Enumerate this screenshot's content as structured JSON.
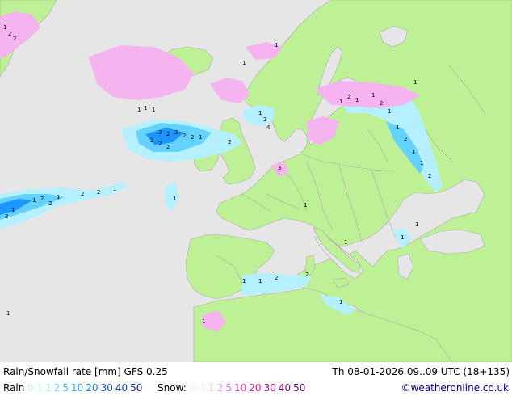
{
  "footer": {
    "title": "Rain/Snowfall rate [mm] GFS 0.25",
    "datetime": "Th 08-01-2026 09..09 UTC (18+135)",
    "rain_label": "Rain",
    "rain_scale": [
      {
        "label": "0.1",
        "color": "#c8f0ff"
      },
      {
        "label": "1",
        "color": "#96e6ff"
      },
      {
        "label": "2",
        "color": "#64d2ff"
      },
      {
        "label": "5",
        "color": "#32b4ff"
      },
      {
        "label": "10",
        "color": "#1e96ff"
      },
      {
        "label": "20",
        "color": "#1478e6"
      },
      {
        "label": "30",
        "color": "#0a5ac8"
      },
      {
        "label": "40",
        "color": "#0a3caa"
      },
      {
        "label": "50",
        "color": "#0a1e8c"
      }
    ],
    "snow_label": "Snow:",
    "snow_scale": [
      {
        "label": "0.1",
        "color": "#ffe6ff"
      },
      {
        "label": "1",
        "color": "#ffbef5"
      },
      {
        "label": "2",
        "color": "#ff96eb"
      },
      {
        "label": "5",
        "color": "#ff64dc"
      },
      {
        "label": "10",
        "color": "#f032c8"
      },
      {
        "label": "20",
        "color": "#d214b4"
      },
      {
        "label": "30",
        "color": "#b400a0"
      },
      {
        "label": "40",
        "color": "#8c008c"
      },
      {
        "label": "50",
        "color": "#640078"
      }
    ],
    "credit": "©weatheronline.co.uk"
  },
  "colors": {
    "sea": "#e6e6e6",
    "land": "#bef096",
    "border": "#aaaaaa",
    "rain_light": "#b4f0ff",
    "rain_mid": "#64d2ff",
    "rain_heavy": "#1e96ff",
    "snow": "#f5b4f0"
  }
}
